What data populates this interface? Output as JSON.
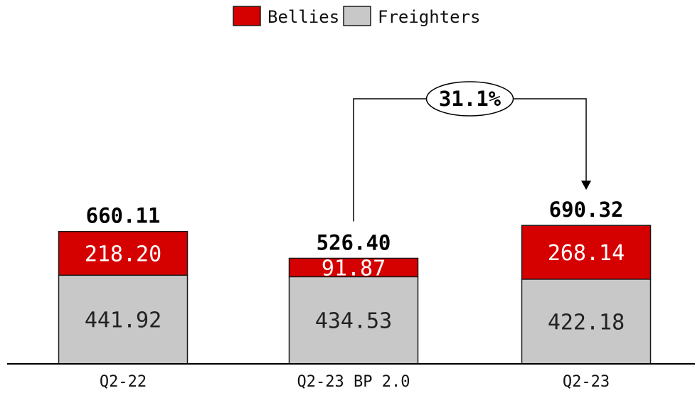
{
  "chart_data": {
    "type": "bar",
    "stacked": true,
    "categories": [
      "Q2-22",
      "Q2-23 BP 2.0",
      "Q2-23"
    ],
    "series": [
      {
        "name": "Freighters",
        "values": [
          441.92,
          434.53,
          422.18
        ],
        "labels": [
          "441.92",
          "434.53",
          "422.18"
        ]
      },
      {
        "name": "Bellies",
        "values": [
          218.2,
          91.87,
          268.14
        ],
        "labels": [
          "218.20",
          "91.87",
          "268.14"
        ]
      }
    ],
    "totals": [
      660.11,
      526.4,
      690.32
    ],
    "total_labels": [
      "660.11",
      "526.40",
      "690.32"
    ],
    "legend_order": [
      "Bellies",
      "Freighters"
    ],
    "legend_position": "top-center",
    "annotation": {
      "text": "31.1%",
      "from_category": "Q2-23 BP 2.0",
      "to_category": "Q2-23"
    },
    "title": "",
    "xlabel": "",
    "ylabel": "",
    "ylim": [
      0,
      820
    ],
    "grid": false,
    "colors": {
      "Bellies": "#d50000",
      "Freighters": "#c8c8c8",
      "outline": "#1a1a1a"
    }
  }
}
